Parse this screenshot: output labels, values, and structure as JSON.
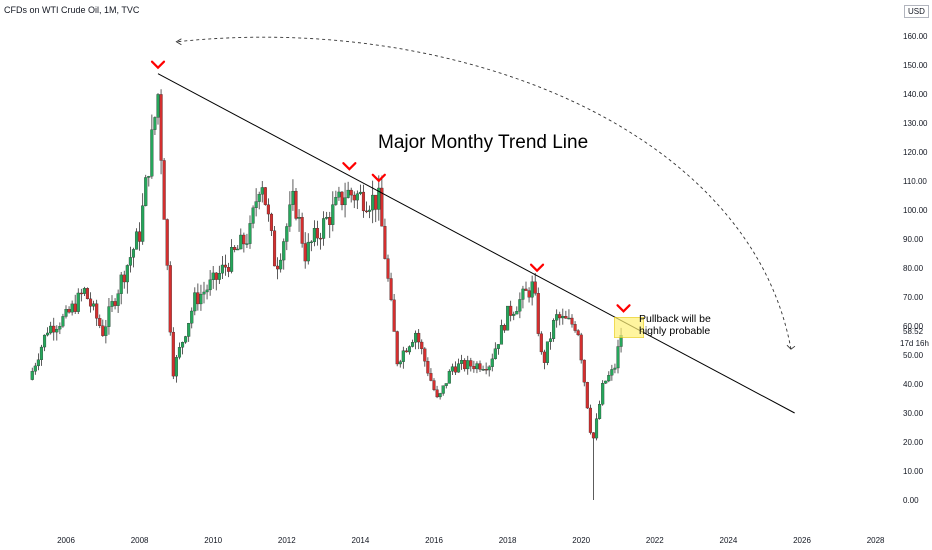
{
  "header": {
    "symbol_title": "CFDs on WTI Crude Oil, 1M, TVC",
    "currency": "USD"
  },
  "colors": {
    "up_candle": "#26a65b",
    "down_candle": "#d32f2f",
    "wick": "#333333",
    "trend_line": "#000000",
    "peak_marker": "#ff0000",
    "highlight_box": "#fff176"
  },
  "chart_data": {
    "type": "candlestick",
    "title": "",
    "xlabel": "",
    "ylabel": "",
    "x_ticks": [
      "2006",
      "2008",
      "2010",
      "2012",
      "2014",
      "2016",
      "2018",
      "2020",
      "2022",
      "2024",
      "2026",
      "2028"
    ],
    "y_ticks": [
      "0.00",
      "10.00",
      "20.00",
      "30.00",
      "40.00",
      "50.00",
      "60.00",
      "70.00",
      "80.00",
      "90.00",
      "100.00",
      "110.00",
      "120.00",
      "130.00",
      "140.00",
      "150.00",
      "160.00"
    ],
    "ylim": [
      -3,
      172
    ],
    "xlim": [
      2005.0,
      2028.6
    ],
    "grid": false,
    "last_price": "58.52",
    "countdown": "17d 16h",
    "monthly_closes": [
      {
        "year": 2005.0,
        "close": 41.5
      },
      {
        "year": 2005.5,
        "close": 59.0
      },
      {
        "year": 2006.0,
        "close": 63.0
      },
      {
        "year": 2006.5,
        "close": 72.0
      },
      {
        "year": 2007.0,
        "close": 58.0
      },
      {
        "year": 2007.5,
        "close": 76.0
      },
      {
        "year": 2008.0,
        "close": 92.0
      },
      {
        "year": 2008.5,
        "close": 140.0
      },
      {
        "year": 2008.9,
        "close": 44.0
      },
      {
        "year": 2009.5,
        "close": 69.0
      },
      {
        "year": 2010.0,
        "close": 75.0
      },
      {
        "year": 2011.0,
        "close": 92.0
      },
      {
        "year": 2011.3,
        "close": 113.0
      },
      {
        "year": 2011.7,
        "close": 80.0
      },
      {
        "year": 2012.2,
        "close": 104.0
      },
      {
        "year": 2012.5,
        "close": 85.0
      },
      {
        "year": 2013.0,
        "close": 95.0
      },
      {
        "year": 2013.6,
        "close": 106.0
      },
      {
        "year": 2014.5,
        "close": 103.0
      },
      {
        "year": 2015.0,
        "close": 48.0
      },
      {
        "year": 2015.5,
        "close": 58.0
      },
      {
        "year": 2016.1,
        "close": 34.0
      },
      {
        "year": 2016.5,
        "close": 46.0
      },
      {
        "year": 2017.5,
        "close": 47.0
      },
      {
        "year": 2018.0,
        "close": 64.0
      },
      {
        "year": 2018.7,
        "close": 74.0
      },
      {
        "year": 2018.95,
        "close": 46.0
      },
      {
        "year": 2019.3,
        "close": 63.0
      },
      {
        "year": 2019.9,
        "close": 60.0
      },
      {
        "year": 2020.3,
        "close": 19.0
      },
      {
        "year": 2020.6,
        "close": 40.0
      },
      {
        "year": 2020.9,
        "close": 45.0
      },
      {
        "year": 2021.1,
        "close": 58.5
      }
    ],
    "trend_line": {
      "start": {
        "year": 2008.5,
        "price": 147.0
      },
      "end": {
        "year": 2025.8,
        "price": 30.0
      }
    },
    "peak_markers": [
      {
        "year": 2008.5,
        "price": 147.0
      },
      {
        "year": 2013.7,
        "price": 112.0
      },
      {
        "year": 2014.5,
        "price": 108.0
      },
      {
        "year": 2018.8,
        "price": 77.0
      },
      {
        "year": 2021.15,
        "price": 63.0
      }
    ],
    "highlight_zone": {
      "year_start": 2020.9,
      "year_end": 2021.7,
      "price_low": 56.0,
      "price_high": 63.0
    },
    "projection_arc": {
      "from": {
        "year": 2025.7,
        "price": 52.0
      },
      "to": {
        "year": 2009.0,
        "price": 158.0
      }
    },
    "annotations": {
      "headline": "Major Monthy Trend Line",
      "note_line1": "Pullback will be",
      "note_line2": "highly probable"
    }
  }
}
